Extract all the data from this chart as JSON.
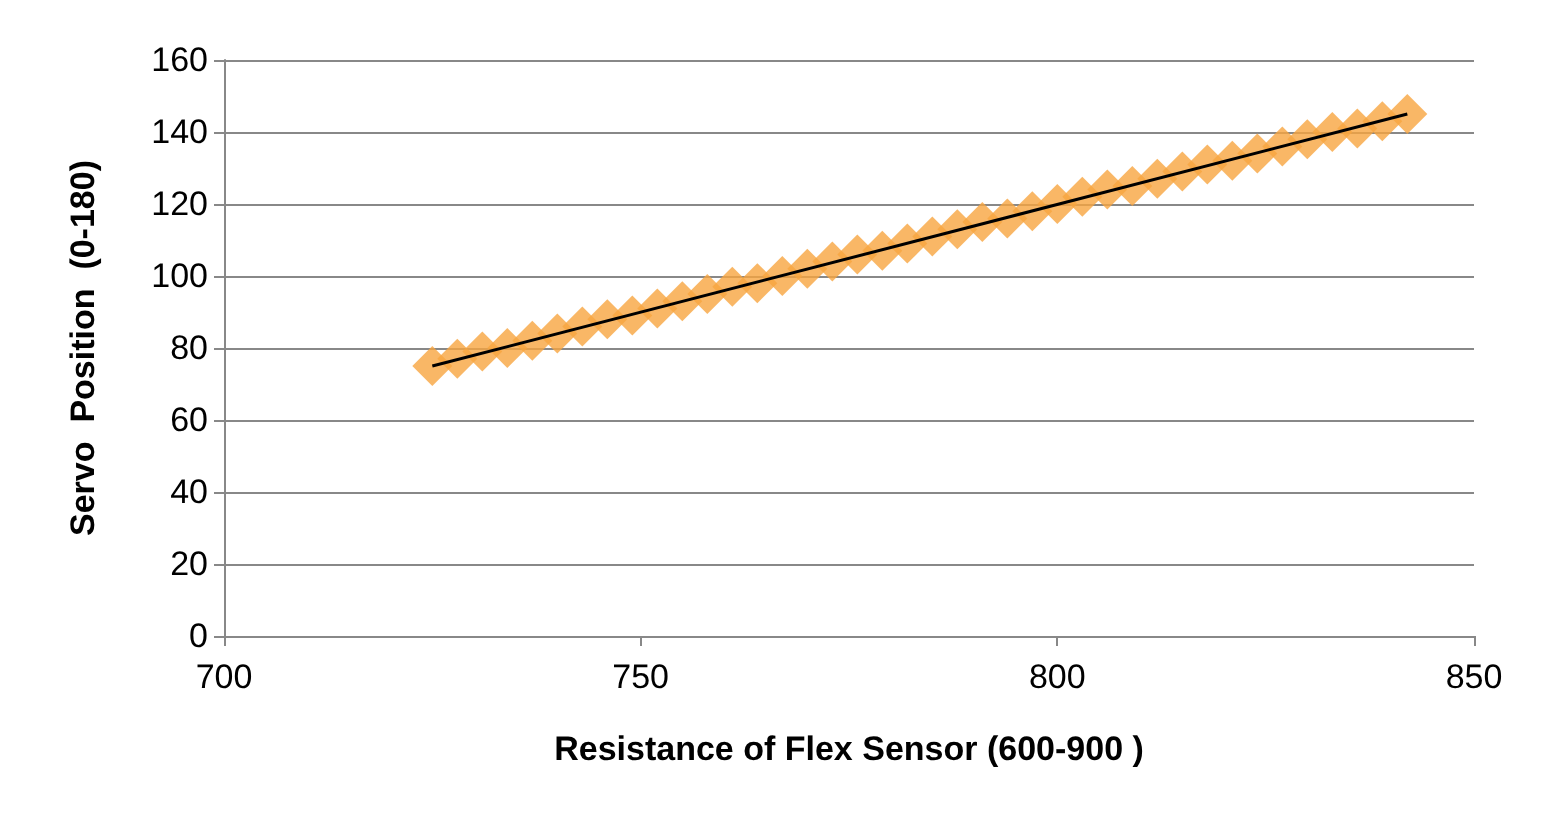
{
  "chart_data": {
    "type": "scatter",
    "xlabel": "Resistance of Flex Sensor (600-900 )",
    "ylabel": "Servo  Position  (0-180)",
    "xlim": [
      700,
      850
    ],
    "xticks": [
      700,
      750,
      800,
      850
    ],
    "ylim": [
      0,
      160
    ],
    "yticks": [
      0,
      20,
      40,
      60,
      80,
      100,
      120,
      140,
      160
    ],
    "grid": "y",
    "marker": "diamond",
    "series": [
      {
        "color": "#f7a540",
        "x": [
          725,
          728,
          731,
          734,
          737,
          740,
          743,
          746,
          749,
          752,
          755,
          758,
          761,
          764,
          767,
          770,
          773,
          776,
          779,
          782,
          785,
          788,
          791,
          794,
          797,
          800,
          803,
          806,
          809,
          812,
          815,
          818,
          821,
          824,
          827,
          830,
          833,
          836,
          839,
          842
        ],
        "values": [
          75,
          77,
          79,
          80,
          82,
          84,
          86,
          88,
          89,
          91,
          93,
          95,
          97,
          98,
          100,
          102,
          104,
          106,
          107,
          109,
          111,
          113,
          115,
          116,
          118,
          120,
          122,
          124,
          125,
          127,
          129,
          131,
          132,
          134,
          136,
          138,
          140,
          141,
          143,
          145
        ]
      },
      {
        "type": "line",
        "color": "#000000",
        "line_style": "solid",
        "marker": "none",
        "x": [
          725,
          842
        ],
        "values": [
          75,
          145
        ]
      }
    ]
  }
}
